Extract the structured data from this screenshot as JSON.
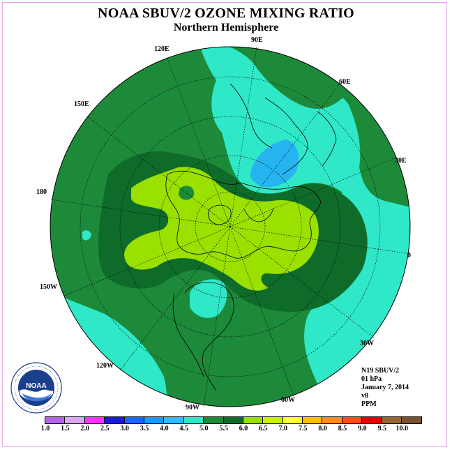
{
  "header": {
    "title": "NOAA SBUV/2 OZONE MIXING RATIO",
    "subtitle": "Northern Hemisphere"
  },
  "map": {
    "projection": "north-polar-stereographic",
    "longitude_labels": [
      "90E",
      "60E",
      "30E",
      "0",
      "30W",
      "60W",
      "90W",
      "120W",
      "150W",
      "180",
      "150E",
      "120E"
    ],
    "field": "ozone mixing ratio",
    "colors": {
      "level_4_5_to_5_0": "#2ee8c8",
      "level_5_0_to_5_5": "#1d8a3a",
      "level_5_5_to_6_0": "#0f6b2a",
      "level_6_0_to_6_5": "#9ae000",
      "level_3_5_to_4_0": "#26b4f0"
    }
  },
  "info": {
    "satellite": "N19 SBUV/2",
    "level": "01 hPa",
    "date": "January 7, 2014",
    "version": "v8",
    "units": "PPM"
  },
  "colorbar": {
    "colors": [
      "#b266e6",
      "#dba6f2",
      "#ff33ff",
      "#1a1ad9",
      "#1a66ff",
      "#1a99ff",
      "#33bbff",
      "#2ee8c8",
      "#1d8a3a",
      "#0f6b2a",
      "#9ae000",
      "#c8f000",
      "#ffff33",
      "#ffc000",
      "#ff8c1a",
      "#ff4d1a",
      "#e60000",
      "#996633",
      "#7a5230"
    ],
    "ticks": [
      "1.0",
      "1.5",
      "2.0",
      "2.5",
      "3.0",
      "3.5",
      "4.0",
      "4.5",
      "5.0",
      "5.5",
      "6.0",
      "6.5",
      "7.0",
      "7.5",
      "8.0",
      "8.5",
      "9.0",
      "9.5",
      "10.0"
    ]
  },
  "logo": {
    "text": "NOAA",
    "ring_text": "NATIONAL OCEANIC AND ATMOSPHERIC ADMINISTRATION · U.S. DEPARTMENT OF COMMERCE"
  }
}
